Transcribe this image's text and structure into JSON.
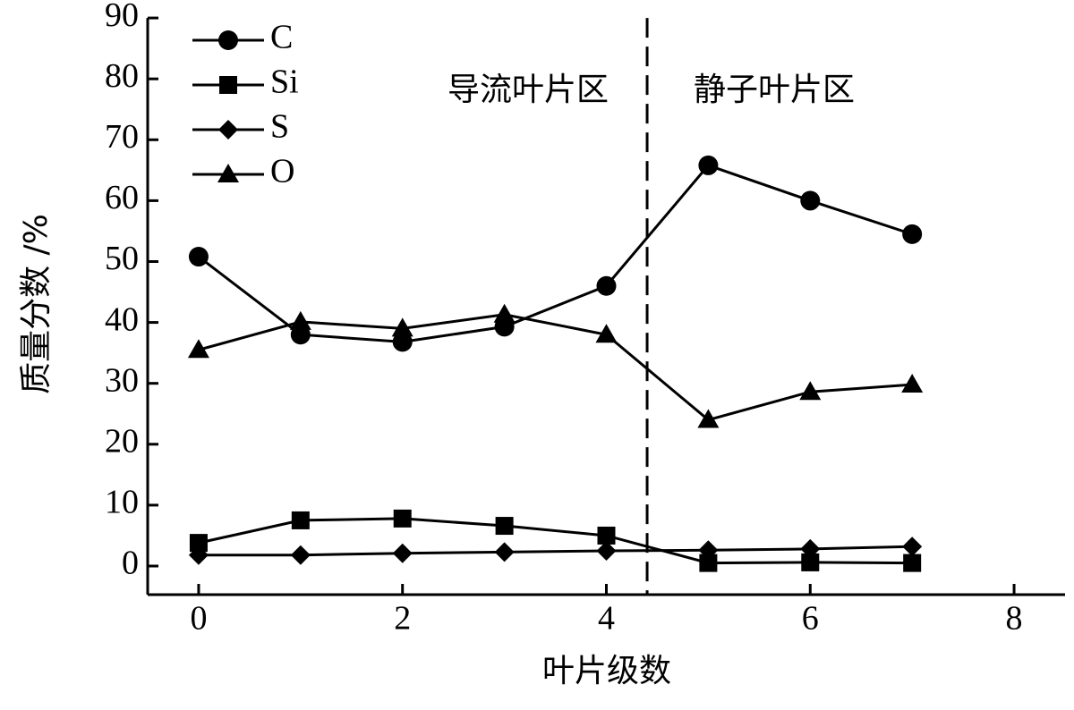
{
  "chart_data": {
    "type": "line",
    "xlabel": "叶片级数",
    "ylabel": "质量分数 /%",
    "x": [
      0,
      1,
      2,
      3,
      4,
      5,
      6,
      7
    ],
    "series": [
      {
        "name": "C",
        "marker": "circle",
        "color": "#000000",
        "values": [
          50.8,
          38.0,
          36.8,
          39.3,
          46.0,
          65.8,
          60.0,
          54.5
        ]
      },
      {
        "name": "Si",
        "marker": "square",
        "color": "#000000",
        "values": [
          3.8,
          7.5,
          7.8,
          6.6,
          5.0,
          0.5,
          0.6,
          0.5
        ]
      },
      {
        "name": "S",
        "marker": "diamond",
        "color": "#000000",
        "values": [
          1.8,
          1.8,
          2.1,
          2.3,
          2.5,
          2.6,
          2.8,
          3.2
        ]
      },
      {
        "name": "O",
        "marker": "triangle",
        "color": "#000000",
        "values": [
          35.5,
          40.1,
          39.0,
          41.3,
          38.0,
          24.0,
          28.6,
          29.8
        ]
      }
    ],
    "xlim": [
      -0.5,
      8.5
    ],
    "xticks": [
      0,
      2,
      4,
      6,
      8
    ],
    "ylim": [
      -5,
      90
    ],
    "yticks": [
      0,
      10,
      20,
      30,
      40,
      50,
      60,
      70,
      80,
      90
    ],
    "divider_x": 4.4,
    "region_labels": [
      "导流叶片区",
      "静子叶片区"
    ],
    "legend": "upper left"
  }
}
